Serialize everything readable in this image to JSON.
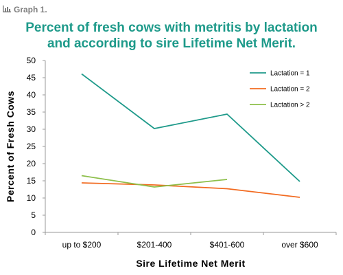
{
  "header": {
    "graph_label": "Graph 1.",
    "title_line1": "Percent of fresh cows with metritis by lactation",
    "title_line2": "and according to sire Lifetime Net Merit."
  },
  "icons": {
    "graph_label_icon": "bar-chart-icon"
  },
  "colors": {
    "title": "#1e9a8a",
    "label": "#7f7f7f"
  },
  "chart_data": {
    "type": "line",
    "categories": [
      "up to $200",
      "$201-400",
      "$401-600",
      "over $600"
    ],
    "xlabel": "Sire Lifetime Net Merit",
    "ylabel": "Percent of Fresh Cows",
    "ylim": [
      0,
      50
    ],
    "yticks": [
      0,
      5,
      10,
      15,
      20,
      25,
      30,
      35,
      40,
      45,
      50
    ],
    "grid": false,
    "legend_position": "top-right",
    "series": [
      {
        "name": "Lactation = 1",
        "color": "#1e9a8a",
        "values": [
          46.1,
          30.2,
          34.4,
          14.8
        ]
      },
      {
        "name": "Lactation = 2",
        "color": "#f26b21",
        "values": [
          14.4,
          13.8,
          12.7,
          10.2
        ]
      },
      {
        "name": "Lactation > 2",
        "color": "#8dbf4a",
        "values": [
          16.5,
          13.2,
          15.4,
          null
        ]
      }
    ]
  }
}
